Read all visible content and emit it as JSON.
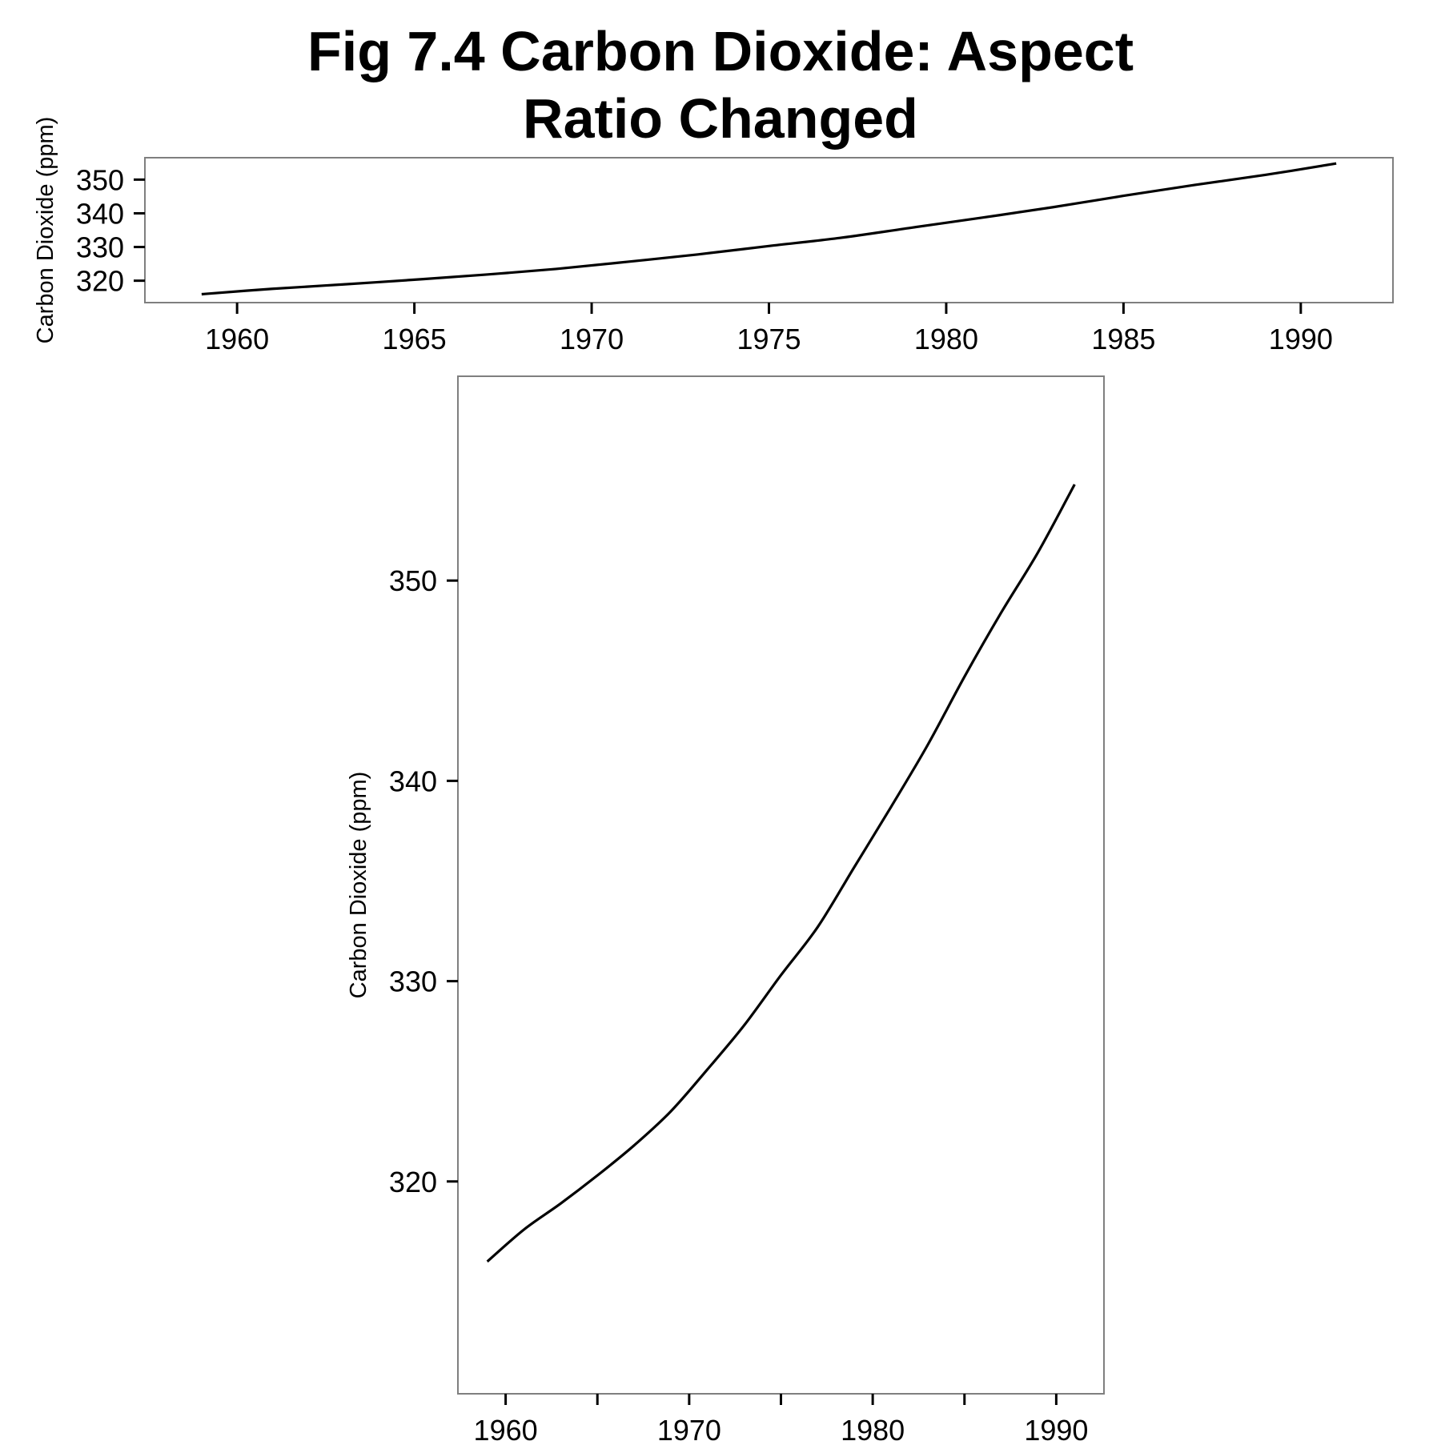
{
  "title_lines": [
    "Fig 7.4 Carbon Dioxide: Aspect",
    "Ratio Changed"
  ],
  "chart_data": [
    {
      "type": "line",
      "ylabel": "Carbon Dioxide (ppm)",
      "xlabel": "",
      "xlim": [
        1957.4,
        1992.6
      ],
      "ylim": [
        313.5,
        356.5
      ],
      "x_ticks": [
        1960,
        1965,
        1970,
        1975,
        1980,
        1985,
        1990
      ],
      "y_ticks": [
        320,
        330,
        340,
        350
      ],
      "grid": false,
      "series": [
        {
          "x": [
            1959,
            1961,
            1963,
            1965,
            1967,
            1969,
            1971,
            1973,
            1975,
            1977,
            1979,
            1981,
            1983,
            1985,
            1987,
            1989,
            1991
          ],
          "values": [
            316.0,
            317.6,
            318.9,
            320.3,
            321.8,
            323.5,
            325.6,
            327.8,
            330.3,
            332.7,
            335.7,
            338.7,
            341.8,
            345.2,
            348.4,
            351.4,
            354.8
          ]
        }
      ]
    },
    {
      "type": "line",
      "ylabel": "Carbon Dioxide (ppm)",
      "xlabel": "",
      "xlim": [
        1957.4,
        1992.6
      ],
      "ylim": [
        309.4,
        360.2
      ],
      "x_ticks": [
        1960,
        1970,
        1980,
        1990
      ],
      "x_ticks_unlabeled": [
        1965,
        1975,
        1985
      ],
      "y_ticks": [
        320,
        330,
        340,
        350
      ],
      "grid": false,
      "series": [
        {
          "x": [
            1959,
            1961,
            1963,
            1965,
            1967,
            1969,
            1971,
            1973,
            1975,
            1977,
            1979,
            1981,
            1983,
            1985,
            1987,
            1989,
            1991
          ],
          "values": [
            316.0,
            317.6,
            318.9,
            320.3,
            321.8,
            323.5,
            325.6,
            327.8,
            330.3,
            332.7,
            335.7,
            338.7,
            341.8,
            345.2,
            348.4,
            351.4,
            354.8
          ]
        }
      ]
    }
  ]
}
